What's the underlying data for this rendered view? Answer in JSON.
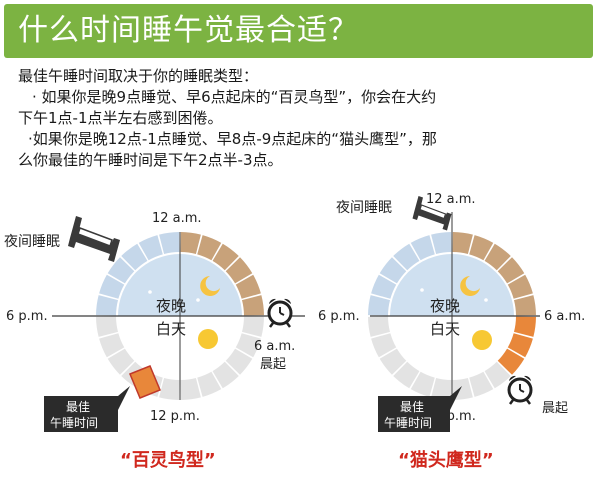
{
  "title": "什么时间睡午觉最合适？",
  "intro": {
    "line1": "最佳午睡时间取决于你的睡眠类型：",
    "line2": "· 如果你是晚9点睡觉、早6点起床的“百灵鸟型”，你会在大约",
    "line3": "下午1点-1点半左右感到困倦。",
    "line4": "·如果你是晚12点-1点睡觉、早8点-9点起床的“猫头鹰型”，那",
    "line5": "么你最佳的午睡时间是下午2点半-3点。"
  },
  "clock_left": {
    "label_night_sleep": "夜间睡眠",
    "top": "12 a.m.",
    "left": "6 p.m.",
    "bottom": "12 p.m.",
    "wake_time": "6 a.m.",
    "wake_label": "晨起",
    "night": "夜晚",
    "day": "白天",
    "nap_label_1": "最佳",
    "nap_label_2": "午睡时间",
    "caption": "“百灵鸟型”"
  },
  "clock_right": {
    "label_night_sleep": "夜间睡眠",
    "top": "12 a.m.",
    "left": "6 p.m.",
    "right": "6 a.m.",
    "bottom": "12 p.m.",
    "wake_label": "晨起",
    "night": "夜晚",
    "day": "白天",
    "nap_label_1": "最佳",
    "nap_label_2": "午睡时间",
    "caption": "“猫头鹰型”"
  },
  "colors": {
    "banner": "#7cb342",
    "sleep": "#c8a27a",
    "night_ring": "#c5d7ea",
    "day_ring": "#e3e3e3",
    "nap": "#e8873a",
    "caption": "#d0281e"
  },
  "icons": [
    "bed-icon",
    "alarm-clock-icon",
    "moon-icon",
    "star-icon",
    "sun-icon"
  ]
}
